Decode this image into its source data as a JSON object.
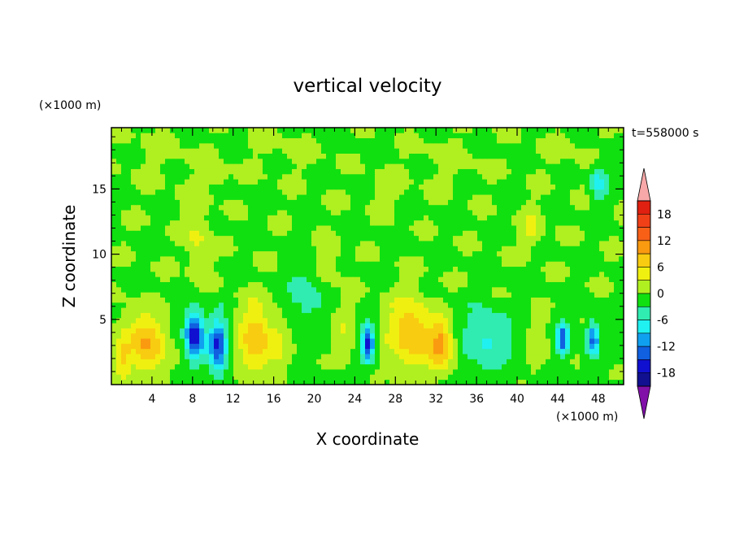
{
  "chart_data": {
    "type": "heatmap",
    "title": "vertical velocity",
    "xlabel": "X coordinate",
    "ylabel": "Z coordinate",
    "x_unit": "(×1000 m)",
    "y_unit": "(×1000 m)",
    "time_label": "t=558000 s",
    "xlim": [
      0,
      50.5
    ],
    "ylim": [
      0,
      19.7
    ],
    "x_ticks": [
      4,
      8,
      12,
      16,
      20,
      24,
      28,
      32,
      36,
      40,
      44,
      48
    ],
    "y_ticks": [
      5,
      10,
      15
    ],
    "colorbar": {
      "tick_labels": [
        "18",
        "12",
        "6",
        "0",
        "-6",
        "-12",
        "-18"
      ],
      "tick_values": [
        18,
        12,
        6,
        0,
        -6,
        -12,
        -18
      ],
      "range": [
        -21,
        21
      ],
      "interval": 3,
      "colors": [
        {
          "value": 19.5,
          "color": "#e02010"
        },
        {
          "value": 16.5,
          "color": "#f04018"
        },
        {
          "value": 13.5,
          "color": "#f86018"
        },
        {
          "value": 10.5,
          "color": "#fa9a10"
        },
        {
          "value": 7.5,
          "color": "#f8cc10"
        },
        {
          "value": 4.5,
          "color": "#f0f010"
        },
        {
          "value": 1.5,
          "color": "#b0f020"
        },
        {
          "value": -1.5,
          "color": "#10e010"
        },
        {
          "value": -4.5,
          "color": "#30ecb0"
        },
        {
          "value": -7.5,
          "color": "#20f0f0"
        },
        {
          "value": -10.5,
          "color": "#10a0f0"
        },
        {
          "value": -13.5,
          "color": "#1060e0"
        },
        {
          "value": -16.5,
          "color": "#1010d0"
        },
        {
          "value": -19.5,
          "color": "#101090"
        }
      ],
      "over_color": "#f8a8a8",
      "under_color": "#8010a8"
    },
    "background_color": "#20ecb0",
    "features": [
      {
        "x": 2.5,
        "z": 3.5,
        "sx": 1.8,
        "sz": 2.2,
        "w": 5
      },
      {
        "x": 4.0,
        "z": 3.0,
        "sx": 1.5,
        "sz": 2.0,
        "w": 7
      },
      {
        "x": 8.2,
        "z": 3.8,
        "sx": 0.9,
        "sz": 1.8,
        "w": -18
      },
      {
        "x": 10.5,
        "z": 3.0,
        "sx": 0.9,
        "sz": 2.0,
        "w": -15
      },
      {
        "x": 14.2,
        "z": 3.5,
        "sx": 1.6,
        "sz": 2.6,
        "w": 9
      },
      {
        "x": 16.5,
        "z": 3.0,
        "sx": 1.0,
        "sz": 2.0,
        "w": 3
      },
      {
        "x": 19.0,
        "z": 7.0,
        "sx": 1.5,
        "sz": 2.0,
        "w": -5
      },
      {
        "x": 23.0,
        "z": 4.0,
        "sx": 1.0,
        "sz": 2.0,
        "w": 3
      },
      {
        "x": 25.3,
        "z": 3.2,
        "sx": 0.6,
        "sz": 1.4,
        "w": -16
      },
      {
        "x": 29.5,
        "z": 4.0,
        "sx": 2.2,
        "sz": 2.6,
        "w": 9
      },
      {
        "x": 32.5,
        "z": 3.0,
        "sx": 1.2,
        "sz": 1.8,
        "w": 10
      },
      {
        "x": 37.0,
        "z": 3.5,
        "sx": 2.5,
        "sz": 2.5,
        "w": -6
      },
      {
        "x": 42.0,
        "z": 3.0,
        "sx": 1.0,
        "sz": 2.0,
        "w": 3
      },
      {
        "x": 44.5,
        "z": 3.5,
        "sx": 0.6,
        "sz": 1.3,
        "w": -14
      },
      {
        "x": 47.5,
        "z": 3.5,
        "sx": 0.6,
        "sz": 1.3,
        "w": -12
      },
      {
        "x": 8.5,
        "z": 11.5,
        "sx": 1.2,
        "sz": 3.0,
        "w": 4
      },
      {
        "x": 21.5,
        "z": 9.5,
        "sx": 1.0,
        "sz": 1.5,
        "w": 4
      },
      {
        "x": 41.5,
        "z": 12.0,
        "sx": 1.0,
        "sz": 1.5,
        "w": 4
      },
      {
        "x": 48.0,
        "z": 15.5,
        "sx": 0.8,
        "sz": 1.5,
        "w": -7
      },
      {
        "x": 10.5,
        "z": 16.0,
        "sx": 1.0,
        "sz": 1.0,
        "w": 3
      },
      {
        "x": 27.0,
        "z": 15.0,
        "sx": 1.5,
        "sz": 1.5,
        "w": 2
      },
      {
        "x": 33.0,
        "z": 17.0,
        "sx": 4.0,
        "sz": 2.5,
        "w": 1
      },
      {
        "x": 5.0,
        "z": 17.5,
        "sx": 4.0,
        "sz": 2.5,
        "w": 1
      },
      {
        "x": 17.0,
        "z": 18.0,
        "sx": 4.0,
        "sz": 2.0,
        "w": 1
      },
      {
        "x": 45.0,
        "z": 18.0,
        "sx": 3.0,
        "sz": 2.0,
        "w": 1
      },
      {
        "x": 1.0,
        "z": 2.0,
        "sx": 0.8,
        "sz": 1.5,
        "w": 6
      }
    ]
  }
}
